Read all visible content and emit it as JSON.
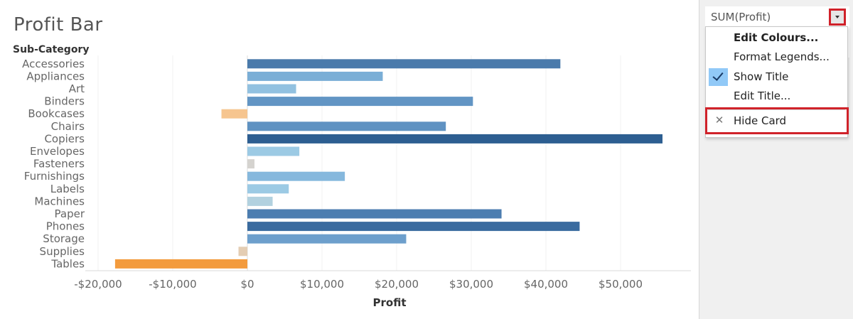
{
  "sheet": {
    "title": "Profit Bar",
    "row_header": "Sub-Category",
    "x_axis_title": "Profit"
  },
  "chart_data": {
    "type": "bar",
    "orientation": "horizontal",
    "title": "Profit Bar",
    "xlabel": "Profit",
    "ylabel": "Sub-Category",
    "categories": [
      "Accessories",
      "Appliances",
      "Art",
      "Binders",
      "Bookcases",
      "Chairs",
      "Copiers",
      "Envelopes",
      "Fasteners",
      "Furnishings",
      "Labels",
      "Machines",
      "Paper",
      "Phones",
      "Storage",
      "Supplies",
      "Tables"
    ],
    "values": [
      41937,
      18138,
      6528,
      30222,
      -3473,
      26590,
      55618,
      6964,
      950,
      13059,
      5546,
      3385,
      34054,
      44516,
      21279,
      -1189,
      -17725
    ],
    "bar_colors": [
      "#4a7aab",
      "#7aaed6",
      "#92c1e0",
      "#6295c4",
      "#f6c58f",
      "#5f92c2",
      "#2d5e91",
      "#9ccae4",
      "#d5d3cf",
      "#86b8dd",
      "#9ccae4",
      "#b2d1df",
      "#4c7db0",
      "#3a6b9f",
      "#6d9fcc",
      "#e4cdb3",
      "#f39b3d"
    ],
    "xlim": [
      -20000,
      60000
    ],
    "x_ticks": [
      -20000,
      -10000,
      0,
      10000,
      20000,
      30000,
      40000,
      50000
    ],
    "x_tick_labels": [
      "-$20,000",
      "-$10,000",
      "$0",
      "$10,000",
      "$20,000",
      "$30,000",
      "$40,000",
      "$50,000"
    ],
    "grid": true
  },
  "legend": {
    "title": "SUM(Profit)",
    "dropdown_icon": "caret-down-icon",
    "accent_highlight": "#d0222a"
  },
  "menu": {
    "items": [
      {
        "label": "Edit Colours...",
        "bold": true
      },
      {
        "label": "Format Legends...",
        "bold": false
      },
      {
        "label": "Show Title",
        "checked": true
      },
      {
        "label": "Edit Title...",
        "bold": false
      }
    ],
    "hide_card_label": "Hide Card",
    "hide_card_icon": "x-icon",
    "checkmark_icon": "checkmark-icon"
  }
}
